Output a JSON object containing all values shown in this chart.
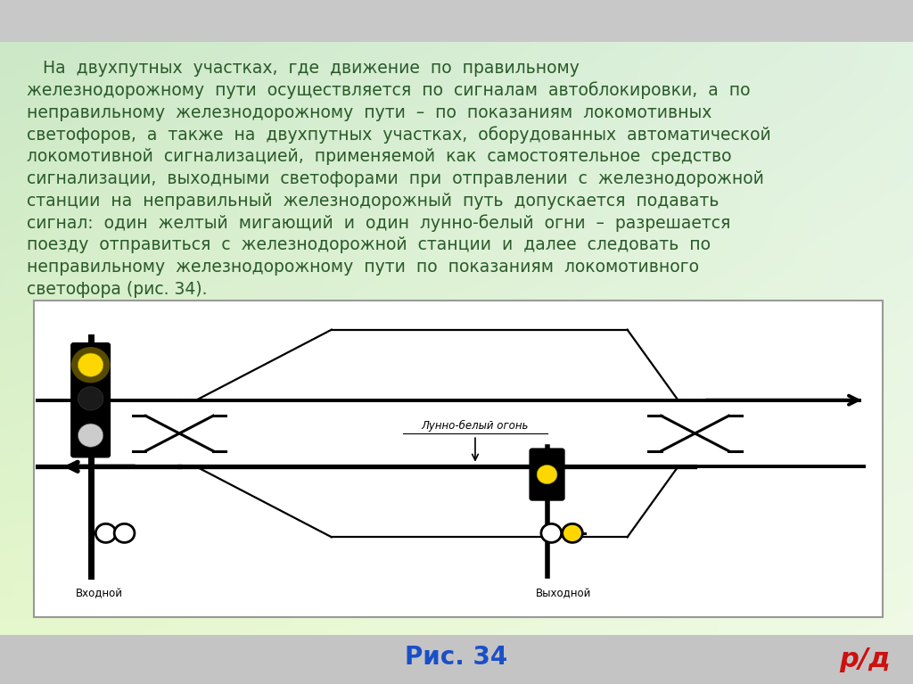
{
  "bg_top_color": "#c8c8c8",
  "bg_bottom_color": "#c0c0c0",
  "gradient_tl": [
    0.8,
    0.91,
    0.78
  ],
  "gradient_tr": [
    0.88,
    0.95,
    0.88
  ],
  "gradient_bl": [
    0.9,
    0.97,
    0.8
  ],
  "gradient_br": [
    0.94,
    0.98,
    0.9
  ],
  "text_color": "#2a5a2a",
  "caption_text": "Рис. 34",
  "caption_color": "#1a4fc8",
  "logo_text": "р/д",
  "logo_color": "#cc1111",
  "label_vhodnoj": "Входной",
  "label_vyhodnoj": "Выходной",
  "label_lunno": "Лунно-белый огонь",
  "text_lines": [
    "   На  двухпутных  участках,  где  движение  по  правильному",
    "железнодорожному  пути  осуществляется  по  сигналам  автоблокировки,  а  по",
    "неправильному  железнодорожному  пути  –  по  показаниям  локомотивных",
    "светофоров,  а  также  на  двухпутных  участках,  оборудованных  автоматической",
    "локомотивной  сигнализацией,  применяемой  как  самостоятельное  средство",
    "сигнализации,  выходными  светофорами  при  отправлении  с  железнодорожной",
    "станции  на  неправильный  железнодорожный  путь  допускается  подавать",
    "сигнал:  один  желтый  мигающий  и  один  лунно-белый  огни  –  разрешается",
    "поезду  отправиться  с  железнодорожной  станции  и  далее  следовать  по",
    "неправильному  железнодорожному  пути  по  показаниям  локомотивного",
    "светофора (рис. 34)."
  ],
  "text_fontsize": 13.5,
  "text_linespacing": 1.38
}
